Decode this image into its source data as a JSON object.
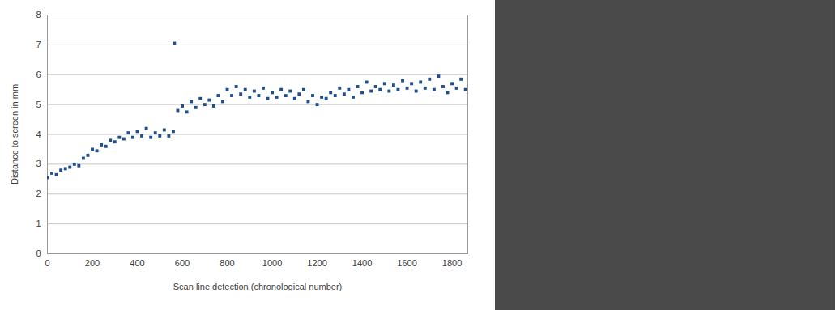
{
  "chart_data": {
    "type": "scatter",
    "x_label": "Scan line detection (chronological number)",
    "y_label": "Distance to screen in mm",
    "color": "#1f4e8c",
    "marker": "square",
    "grid": true,
    "xlim": [
      0,
      1870
    ],
    "xticks": [
      0,
      200,
      400,
      600,
      800,
      1000,
      1200,
      1400,
      1600,
      1800
    ],
    "ylim": [
      0,
      8
    ],
    "yticks": [
      0,
      1,
      2,
      3,
      4,
      5,
      6,
      7,
      8
    ],
    "x": [
      0,
      20,
      40,
      60,
      80,
      100,
      120,
      140,
      160,
      180,
      200,
      220,
      240,
      260,
      280,
      300,
      320,
      340,
      360,
      380,
      400,
      420,
      440,
      460,
      480,
      500,
      520,
      540,
      560,
      565,
      580,
      600,
      620,
      640,
      660,
      680,
      700,
      720,
      740,
      760,
      780,
      800,
      820,
      840,
      860,
      880,
      900,
      920,
      940,
      960,
      980,
      1000,
      1020,
      1040,
      1060,
      1080,
      1100,
      1120,
      1140,
      1160,
      1180,
      1200,
      1220,
      1240,
      1260,
      1280,
      1300,
      1320,
      1340,
      1360,
      1380,
      1400,
      1420,
      1440,
      1460,
      1480,
      1500,
      1520,
      1540,
      1560,
      1580,
      1600,
      1620,
      1640,
      1660,
      1680,
      1700,
      1720,
      1740,
      1760,
      1780,
      1800,
      1820,
      1840,
      1860
    ],
    "values": [
      2.55,
      2.7,
      2.65,
      2.8,
      2.85,
      2.9,
      3.0,
      2.95,
      3.2,
      3.3,
      3.5,
      3.45,
      3.65,
      3.6,
      3.8,
      3.75,
      3.9,
      3.85,
      4.05,
      3.9,
      4.1,
      3.95,
      4.2,
      3.9,
      4.05,
      3.95,
      4.15,
      3.95,
      4.1,
      7.05,
      4.8,
      4.95,
      4.75,
      5.1,
      4.9,
      5.2,
      5.0,
      5.15,
      4.95,
      5.3,
      5.1,
      5.5,
      5.3,
      5.6,
      5.35,
      5.5,
      5.25,
      5.45,
      5.3,
      5.55,
      5.2,
      5.4,
      5.25,
      5.5,
      5.3,
      5.45,
      5.2,
      5.35,
      5.5,
      5.1,
      5.3,
      5.0,
      5.25,
      5.2,
      5.4,
      5.3,
      5.55,
      5.35,
      5.5,
      5.25,
      5.6,
      5.4,
      5.75,
      5.45,
      5.6,
      5.5,
      5.7,
      5.45,
      5.65,
      5.5,
      5.8,
      5.55,
      5.7,
      5.45,
      5.75,
      5.55,
      5.85,
      5.5,
      5.95,
      5.6,
      5.4,
      5.7,
      5.55,
      5.85,
      5.5
    ]
  }
}
